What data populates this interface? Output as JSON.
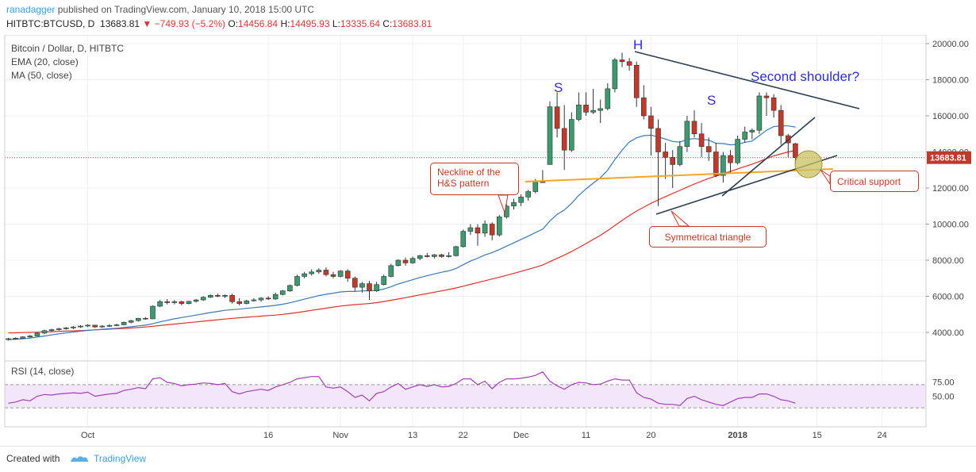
{
  "header": {
    "author": "ranadagger",
    "published_text": "published on TradingView.com, January 10, 2018 15:00 UTC",
    "symbol": "HITBTC:BTCUSD, D",
    "price": "13683.81",
    "change": "▼ −749.93 (−5.2%)",
    "o_label": "O:",
    "o_value": "14456.84",
    "h_label": "H:",
    "h_value": "14495.93",
    "l_label": "L:",
    "l_value": "13335.64",
    "c_label": "C:",
    "c_value": "13683.81"
  },
  "legend": {
    "title": "Bitcoin / Dollar, D, HITBTC",
    "ema": "EMA (20, close)",
    "ma": "MA (50, close)",
    "rsi": "RSI (14, close)"
  },
  "annotations": {
    "s_left": "S",
    "head": "H",
    "s_right": "S",
    "second_shoulder": "Second shoulder?",
    "neckline": "Neckline of the\nH&S pattern",
    "neckline_1": "Neckline of the",
    "neckline_2": "H&S pattern",
    "critical_support": "Critical support",
    "symmetrical_triangle": "Symmetrical triangle"
  },
  "footer": {
    "created_with": "Created with",
    "brand": "TradingView"
  },
  "colors": {
    "up": "#3d9970",
    "down": "#c0392b",
    "ema": "#3c78b4",
    "ma": "#e03030",
    "neckline": "#f5a623",
    "trend": "#2c3e50",
    "rsi": "#a040b0",
    "rsi_band": "#f3e6fb",
    "price_tag": "#c0392b"
  },
  "chart_data": {
    "type": "candlestick",
    "price_axis": {
      "ylim": [
        2800,
        20500
      ],
      "ticks": [
        4000,
        6000,
        8000,
        10000,
        12000,
        14000,
        16000,
        18000,
        20000
      ],
      "tick_labels": [
        "4000.00",
        "6000.00",
        "8000.00",
        "10000.00",
        "12000.00",
        "14000.00",
        "16000.00",
        "18000.00",
        "20000.00"
      ],
      "last_price": 13683.81,
      "last_price_label": "13683.81"
    },
    "time_axis": {
      "tick_labels": [
        "Oct",
        "16",
        "Nov",
        "13",
        "22",
        "Dec",
        "11",
        "20",
        "2018",
        "15",
        "24"
      ],
      "tick_index": [
        11,
        36,
        46,
        56,
        63,
        71,
        80,
        89,
        101,
        112,
        121
      ]
    },
    "candles_ohlc": [
      [
        3600,
        3700,
        3550,
        3650
      ],
      [
        3650,
        3720,
        3600,
        3680
      ],
      [
        3680,
        3790,
        3650,
        3750
      ],
      [
        3750,
        3850,
        3700,
        3800
      ],
      [
        3800,
        4000,
        3780,
        3960
      ],
      [
        3960,
        4150,
        3900,
        4100
      ],
      [
        4100,
        4200,
        4050,
        4150
      ],
      [
        4150,
        4250,
        4100,
        4200
      ],
      [
        4200,
        4300,
        4150,
        4250
      ],
      [
        4250,
        4350,
        4180,
        4300
      ],
      [
        4300,
        4400,
        4250,
        4350
      ],
      [
        4350,
        4450,
        4300,
        4400
      ],
      [
        4400,
        4420,
        4250,
        4300
      ],
      [
        4300,
        4400,
        4250,
        4350
      ],
      [
        4350,
        4450,
        4300,
        4380
      ],
      [
        4380,
        4480,
        4340,
        4420
      ],
      [
        4420,
        4600,
        4400,
        4560
      ],
      [
        4560,
        4700,
        4500,
        4650
      ],
      [
        4650,
        4800,
        4600,
        4780
      ],
      [
        4780,
        4850,
        4700,
        4750
      ],
      [
        4750,
        5500,
        4740,
        5450
      ],
      [
        5450,
        5800,
        5400,
        5700
      ],
      [
        5700,
        5850,
        5550,
        5650
      ],
      [
        5650,
        5800,
        5550,
        5700
      ],
      [
        5700,
        5750,
        5500,
        5600
      ],
      [
        5600,
        5750,
        5550,
        5720
      ],
      [
        5720,
        5850,
        5650,
        5800
      ],
      [
        5800,
        6000,
        5750,
        5950
      ],
      [
        5950,
        6100,
        5900,
        6050
      ],
      [
        6050,
        6150,
        5950,
        6000
      ],
      [
        6000,
        6100,
        5900,
        6050
      ],
      [
        6050,
        6150,
        5600,
        5700
      ],
      [
        5700,
        5900,
        5500,
        5600
      ],
      [
        5600,
        5800,
        5550,
        5750
      ],
      [
        5750,
        5900,
        5700,
        5800
      ],
      [
        5800,
        5950,
        5700,
        5900
      ],
      [
        5900,
        6000,
        5800,
        5850
      ],
      [
        5850,
        6200,
        5800,
        6100
      ],
      [
        6100,
        6350,
        6050,
        6300
      ],
      [
        6300,
        6650,
        6250,
        6600
      ],
      [
        6600,
        7200,
        6550,
        7100
      ],
      [
        7100,
        7350,
        7000,
        7250
      ],
      [
        7250,
        7500,
        7150,
        7350
      ],
      [
        7350,
        7550,
        7250,
        7450
      ],
      [
        7450,
        7600,
        7100,
        7200
      ],
      [
        7200,
        7350,
        7000,
        7100
      ],
      [
        7100,
        7450,
        7050,
        7400
      ],
      [
        7400,
        7500,
        6800,
        7000
      ],
      [
        7000,
        7100,
        6300,
        6500
      ],
      [
        6500,
        6800,
        6200,
        6700
      ],
      [
        6700,
        6850,
        5800,
        6300
      ],
      [
        6300,
        6800,
        6250,
        6650
      ],
      [
        6650,
        7200,
        6600,
        7100
      ],
      [
        7100,
        7800,
        7050,
        7700
      ],
      [
        7700,
        8050,
        7650,
        8000
      ],
      [
        8000,
        8150,
        7700,
        7850
      ],
      [
        7850,
        8200,
        7800,
        8100
      ],
      [
        8100,
        8300,
        8000,
        8250
      ],
      [
        8250,
        8400,
        8150,
        8200
      ],
      [
        8200,
        8350,
        8100,
        8300
      ],
      [
        8300,
        8350,
        8150,
        8200
      ],
      [
        8200,
        8450,
        8150,
        8250
      ],
      [
        8250,
        8800,
        8200,
        8750
      ],
      [
        8750,
        9700,
        8700,
        9600
      ],
      [
        9600,
        10000,
        9400,
        9800
      ],
      [
        9800,
        10000,
        8800,
        9500
      ],
      [
        9500,
        10200,
        9300,
        10000
      ],
      [
        10000,
        10100,
        9100,
        9400
      ],
      [
        9400,
        10500,
        9300,
        10400
      ],
      [
        10400,
        11100,
        10300,
        11000
      ],
      [
        11000,
        11400,
        10800,
        11200
      ],
      [
        11200,
        11650,
        11000,
        11500
      ],
      [
        11500,
        11900,
        11300,
        11800
      ],
      [
        11800,
        12500,
        11700,
        12400
      ],
      [
        12400,
        13000,
        12300,
        12300
      ],
      [
        13300,
        16800,
        13300,
        16500
      ],
      [
        16500,
        17300,
        14800,
        15300
      ],
      [
        15300,
        16600,
        13000,
        14100
      ],
      [
        14100,
        16200,
        14000,
        15800
      ],
      [
        15800,
        17300,
        15700,
        16600
      ],
      [
        16600,
        17300,
        16000,
        16200
      ],
      [
        16200,
        17500,
        16100,
        16300
      ],
      [
        16300,
        16900,
        15600,
        16400
      ],
      [
        16400,
        17800,
        16300,
        17500
      ],
      [
        17500,
        19200,
        17300,
        19100
      ],
      [
        19100,
        19500,
        18700,
        19000
      ],
      [
        19000,
        19200,
        18500,
        18800
      ],
      [
        18800,
        19000,
        16500,
        17000
      ],
      [
        17000,
        17700,
        15800,
        16000
      ],
      [
        16000,
        16500,
        13800,
        15300
      ],
      [
        15300,
        15800,
        11000,
        14000
      ],
      [
        14000,
        14500,
        12500,
        13700
      ],
      [
        13700,
        14100,
        12000,
        13300
      ],
      [
        13300,
        14600,
        13200,
        14300
      ],
      [
        14300,
        16000,
        14000,
        15700
      ],
      [
        15700,
        16300,
        14800,
        15000
      ],
      [
        15000,
        15600,
        13700,
        14300
      ],
      [
        14300,
        14800,
        13500,
        14000
      ],
      [
        14000,
        14500,
        12600,
        12700
      ],
      [
        12700,
        14000,
        12300,
        13800
      ],
      [
        13800,
        14100,
        12800,
        13400
      ],
      [
        13400,
        14900,
        13300,
        14700
      ],
      [
        14700,
        15400,
        14500,
        15100
      ],
      [
        15100,
        15300,
        14700,
        15200
      ],
      [
        15200,
        17300,
        15000,
        17100
      ],
      [
        17100,
        17300,
        16000,
        17000
      ],
      [
        17000,
        17200,
        15900,
        16300
      ],
      [
        16300,
        16600,
        14400,
        14900
      ],
      [
        14900,
        15000,
        13700,
        14500
      ],
      [
        14456.84,
        14495.93,
        13335.64,
        13683.81
      ]
    ],
    "ema20": [
      3600,
      3620,
      3650,
      3690,
      3740,
      3800,
      3860,
      3920,
      3970,
      4020,
      4070,
      4110,
      4140,
      4170,
      4200,
      4230,
      4270,
      4310,
      4360,
      4400,
      4480,
      4580,
      4670,
      4750,
      4820,
      4890,
      4960,
      5030,
      5100,
      5160,
      5220,
      5260,
      5290,
      5330,
      5370,
      5410,
      5450,
      5500,
      5560,
      5640,
      5740,
      5840,
      5940,
      6040,
      6110,
      6170,
      6240,
      6270,
      6270,
      6300,
      6300,
      6330,
      6400,
      6530,
      6680,
      6800,
      6920,
      7040,
      7140,
      7240,
      7330,
      7410,
      7540,
      7750,
      7950,
      8110,
      8290,
      8420,
      8590,
      8780,
      8960,
      9150,
      9330,
      9530,
      9720,
      10170,
      10540,
      10780,
      11150,
      11590,
      11950,
      12270,
      12570,
      12990,
      13580,
      14100,
      14550,
      14780,
      14900,
      14930,
      14830,
      14710,
      14580,
      14540,
      14690,
      14740,
      14700,
      14650,
      14480,
      14460,
      14390,
      14420,
      14530,
      14600,
      14900,
      15200,
      15400,
      15440,
      15440,
      15380
    ],
    "ma50": [
      3970,
      3980,
      3990,
      4000,
      4010,
      4025,
      4040,
      4055,
      4070,
      4085,
      4100,
      4120,
      4140,
      4160,
      4180,
      4200,
      4220,
      4240,
      4270,
      4300,
      4340,
      4380,
      4420,
      4460,
      4500,
      4540,
      4580,
      4620,
      4660,
      4700,
      4740,
      4780,
      4810,
      4840,
      4870,
      4900,
      4930,
      4960,
      5000,
      5050,
      5100,
      5160,
      5220,
      5280,
      5340,
      5400,
      5460,
      5500,
      5540,
      5570,
      5600,
      5650,
      5710,
      5780,
      5850,
      5920,
      6000,
      6080,
      6150,
      6230,
      6300,
      6380,
      6460,
      6560,
      6660,
      6760,
      6860,
      6960,
      7060,
      7160,
      7270,
      7380,
      7490,
      7610,
      7730,
      7920,
      8100,
      8280,
      8480,
      8700,
      8920,
      9150,
      9380,
      9640,
      9920,
      10200,
      10470,
      10720,
      10940,
      11150,
      11340,
      11520,
      11700,
      11870,
      12050,
      12220,
      12380,
      12530,
      12660,
      12790,
      12920,
      13060,
      13190,
      13320,
      13470,
      13630,
      13780,
      13890,
      14000,
      14070
    ],
    "rsi": [
      38,
      40,
      44,
      42,
      50,
      53,
      52,
      54,
      55,
      56,
      55,
      57,
      50,
      52,
      54,
      55,
      60,
      62,
      65,
      63,
      80,
      82,
      74,
      72,
      68,
      70,
      71,
      73,
      72,
      70,
      72,
      58,
      54,
      58,
      60,
      62,
      60,
      66,
      70,
      74,
      80,
      82,
      84,
      84,
      66,
      64,
      66,
      58,
      48,
      52,
      42,
      55,
      58,
      66,
      72,
      62,
      66,
      70,
      67,
      70,
      66,
      67,
      72,
      80,
      80,
      70,
      76,
      63,
      74,
      80,
      80,
      81,
      83,
      86,
      92,
      76,
      68,
      62,
      70,
      74,
      73,
      70,
      71,
      76,
      80,
      78,
      78,
      56,
      48,
      45,
      38,
      36,
      36,
      34,
      46,
      50,
      44,
      40,
      36,
      34,
      40,
      46,
      48,
      48,
      54,
      54,
      50,
      44,
      42,
      38
    ],
    "rsi_axis": {
      "ticks": [
        50,
        75
      ],
      "tick_labels": [
        "50.00",
        "75.00"
      ],
      "band": [
        30,
        70
      ]
    }
  }
}
